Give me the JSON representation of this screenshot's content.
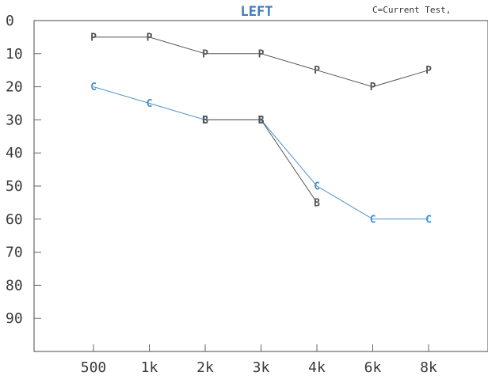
{
  "chart_data": {
    "type": "line",
    "title": "LEFT",
    "note": "C=Current Test,",
    "categories": [
      "500",
      "1k",
      "2k",
      "3k",
      "4k",
      "6k",
      "8k"
    ],
    "y_ticks": [
      "0",
      "10",
      "20",
      "30",
      "40",
      "50",
      "60",
      "70",
      "80",
      "90"
    ],
    "ylim": [
      0,
      100
    ],
    "y_inverted": true,
    "grid": false,
    "series": [
      {
        "marker": "P",
        "color": "#555555",
        "points": [
          {
            "x": "500",
            "y": 5
          },
          {
            "x": "1k",
            "y": 5
          },
          {
            "x": "2k",
            "y": 10
          },
          {
            "x": "3k",
            "y": 10
          },
          {
            "x": "4k",
            "y": 15
          },
          {
            "x": "6k",
            "y": 20
          },
          {
            "x": "8k",
            "y": 15
          }
        ]
      },
      {
        "marker": "C",
        "color": "#4a90c8",
        "points": [
          {
            "x": "500",
            "y": 20
          },
          {
            "x": "1k",
            "y": 25
          },
          {
            "x": "2k",
            "y": 30
          },
          {
            "x": "3k",
            "y": 30
          },
          {
            "x": "4k",
            "y": 50
          },
          {
            "x": "6k",
            "y": 60
          },
          {
            "x": "8k",
            "y": 60
          }
        ]
      },
      {
        "marker": "B",
        "color": "#555555",
        "points": [
          {
            "x": "2k",
            "y": 30
          },
          {
            "x": "3k",
            "y": 30
          },
          {
            "x": "4k",
            "y": 55
          }
        ]
      }
    ],
    "title_color": "#3a7cc0"
  }
}
